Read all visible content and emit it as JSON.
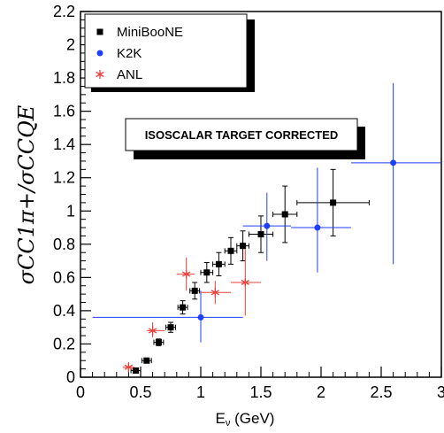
{
  "chart_data": {
    "type": "scatter",
    "title": "",
    "xlabel": "E",
    "xlabel_sub": "ν",
    "xlabel_unit": " (GeV)",
    "ylabel": "σCC1π+/σCCQE",
    "xlim": [
      0,
      3
    ],
    "ylim": [
      0,
      2.2
    ],
    "x_ticks": [
      "0",
      "0.5",
      "1",
      "1.5",
      "2",
      "2.5",
      "3"
    ],
    "y_ticks": [
      "0",
      "0.2",
      "0.4",
      "0.6",
      "0.8",
      "1",
      "1.2",
      "1.4",
      "1.6",
      "1.8",
      "2",
      "2.2"
    ],
    "x_tick_values": [
      0,
      0.5,
      1,
      1.5,
      2,
      2.5,
      3
    ],
    "y_tick_values": [
      0,
      0.2,
      0.4,
      0.6,
      0.8,
      1,
      1.2,
      1.4,
      1.6,
      1.8,
      2,
      2.2
    ],
    "annotation": "ISOSCALAR TARGET CORRECTED",
    "legend_position": "top-left",
    "series": [
      {
        "name": "MiniBooNE",
        "marker": "square",
        "color": "#000000",
        "points": [
          {
            "x": 0.46,
            "y": 0.04,
            "xerr": 0.04,
            "yerr": 0.01
          },
          {
            "x": 0.55,
            "y": 0.1,
            "xerr": 0.04,
            "yerr": 0.015
          },
          {
            "x": 0.65,
            "y": 0.21,
            "xerr": 0.04,
            "yerr": 0.02
          },
          {
            "x": 0.75,
            "y": 0.3,
            "xerr": 0.04,
            "yerr": 0.03
          },
          {
            "x": 0.85,
            "y": 0.42,
            "xerr": 0.04,
            "yerr": 0.04
          },
          {
            "x": 0.95,
            "y": 0.52,
            "xerr": 0.04,
            "yerr": 0.05
          },
          {
            "x": 1.05,
            "y": 0.63,
            "xerr": 0.05,
            "yerr": 0.06
          },
          {
            "x": 1.15,
            "y": 0.68,
            "xerr": 0.05,
            "yerr": 0.07
          },
          {
            "x": 1.25,
            "y": 0.76,
            "xerr": 0.05,
            "yerr": 0.08
          },
          {
            "x": 1.35,
            "y": 0.79,
            "xerr": 0.05,
            "yerr": 0.09
          },
          {
            "x": 1.5,
            "y": 0.86,
            "xerr": 0.1,
            "yerr": 0.11
          },
          {
            "x": 1.7,
            "y": 0.98,
            "xerr": 0.1,
            "yerr": 0.17
          },
          {
            "x": 2.1,
            "y": 1.05,
            "xerr": 0.3,
            "yerr": 0.2
          }
        ]
      },
      {
        "name": "K2K",
        "marker": "circle",
        "color": "#1f3fff",
        "points": [
          {
            "x": 1.0,
            "y": 0.36,
            "xlo": 0.1,
            "xhi": 1.35,
            "ylo": 0.21,
            "yhi": 0.52
          },
          {
            "x": 1.55,
            "y": 0.91,
            "xlo": 1.35,
            "xhi": 1.75,
            "ylo": 0.7,
            "yhi": 1.11
          },
          {
            "x": 1.97,
            "y": 0.9,
            "xlo": 1.75,
            "xhi": 2.25,
            "ylo": 0.63,
            "yhi": 1.26
          },
          {
            "x": 2.6,
            "y": 1.29,
            "xlo": 2.25,
            "xhi": 3.0,
            "ylo": 0.68,
            "yhi": 1.77
          }
        ]
      },
      {
        "name": "ANL",
        "marker": "star",
        "color": "#e8403a",
        "points": [
          {
            "x": 0.4,
            "y": 0.06,
            "xlo": 0.35,
            "xhi": 0.45,
            "ylo": 0.03,
            "yhi": 0.09
          },
          {
            "x": 0.6,
            "y": 0.28,
            "xlo": 0.55,
            "xhi": 0.7,
            "ylo": 0.24,
            "yhi": 0.33
          },
          {
            "x": 0.88,
            "y": 0.62,
            "xlo": 0.8,
            "xhi": 0.95,
            "ylo": 0.52,
            "yhi": 0.72
          },
          {
            "x": 1.12,
            "y": 0.51,
            "xlo": 1.0,
            "xhi": 1.25,
            "ylo": 0.44,
            "yhi": 0.58
          },
          {
            "x": 1.37,
            "y": 0.57,
            "xlo": 1.25,
            "xhi": 1.5,
            "ylo": 0.37,
            "yhi": 0.77
          }
        ]
      }
    ]
  }
}
